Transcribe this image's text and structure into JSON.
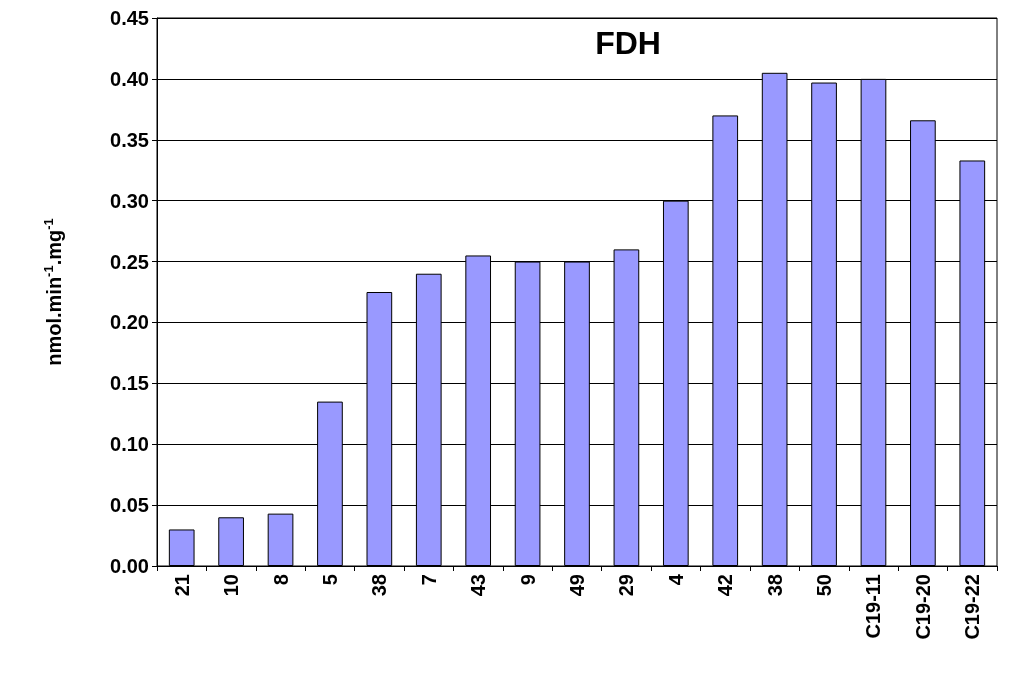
{
  "chart_data": {
    "type": "bar",
    "title": "FDH",
    "ylabel": "nmol.min$^{-1}$.mg$^{-1}$",
    "categories": [
      "21",
      "10",
      "8",
      "5",
      "38",
      "7",
      "43",
      "9",
      "49",
      "29",
      "4",
      "42",
      "38",
      "50",
      "C19-11",
      "C19-20",
      "C19-22"
    ],
    "values": [
      0.03,
      0.04,
      0.043,
      0.135,
      0.225,
      0.24,
      0.255,
      0.25,
      0.25,
      0.26,
      0.3,
      0.37,
      0.405,
      0.397,
      0.4,
      0.366,
      0.333
    ],
    "color": "#9999ff",
    "ylim": [
      0,
      0.45
    ],
    "yticks": [
      {
        "value": 0,
        "label": "0.00"
      },
      {
        "value": 0.05,
        "label": "0.05"
      },
      {
        "value": 0.1,
        "label": "0.10"
      },
      {
        "value": 0.15,
        "label": "0.15"
      },
      {
        "value": 0.2,
        "label": "0.20"
      },
      {
        "value": 0.25,
        "label": "0.25"
      },
      {
        "value": 0.3,
        "label": "0.30"
      },
      {
        "value": 0.35,
        "label": "0.35"
      },
      {
        "value": 0.4,
        "label": "0.40"
      },
      {
        "value": 0.45,
        "label": "0.45"
      }
    ],
    "grid": "y"
  }
}
